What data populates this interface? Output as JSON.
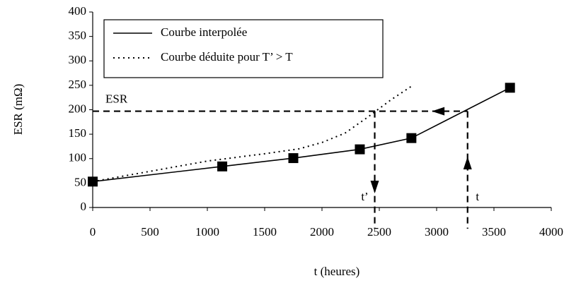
{
  "chart_data": {
    "type": "line",
    "x_label": "t (heures)",
    "y_label": "ESR (mΩ)",
    "xlim": [
      0,
      4000
    ],
    "xticks": [
      0,
      500,
      1000,
      1500,
      2000,
      2500,
      3000,
      3500,
      4000
    ],
    "ylim": [
      0,
      400
    ],
    "yticks": [
      0,
      50,
      100,
      150,
      200,
      250,
      300,
      350,
      400
    ],
    "grid": false,
    "legend": "upper left",
    "series": [
      {
        "name": "Courbe interpolée",
        "color": "#000000",
        "style": "solid",
        "markers": true,
        "x": [
          0,
          1130,
          1750,
          2330,
          2780,
          3640
        ],
        "values": [
          53,
          84,
          101,
          119,
          142,
          245
        ]
      },
      {
        "name": "Courbe déduite pour T’ > T",
        "color": "#000000",
        "style": "dotted",
        "markers": false,
        "x": [
          0,
          1000,
          1500,
          1800,
          2000,
          2200,
          2400,
          2600,
          2780
        ],
        "values": [
          53,
          95,
          110,
          120,
          133,
          152,
          185,
          220,
          248
        ]
      }
    ],
    "annotations": [
      {
        "label": "ESR",
        "y": 197
      },
      {
        "label": "t’",
        "x": 2460
      },
      {
        "label": "t",
        "x": 3270
      }
    ]
  }
}
